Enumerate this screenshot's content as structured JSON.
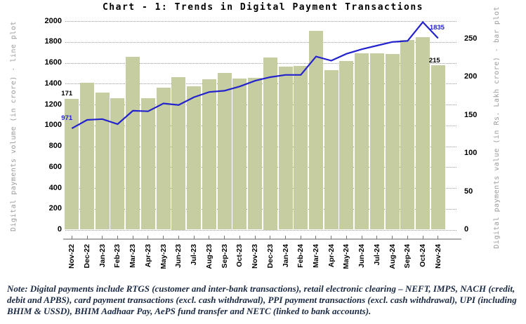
{
  "title": "Chart - 1: Trends in Digital Payment Transactions",
  "note": {
    "label": "Note",
    "text": ": Digital payments include RTGS (customer and inter-bank transactions), retail electronic clearing – NEFT, IMPS, NACH (credit, debit and APBS), card payment transactions (excl. cash withdrawal), PPI payment transactions (excl. cash withdrawal), UPI (including BHIM & USSD), BHIM Aadhaar Pay, AePS fund transfer and NETC (linked to bank accounts)."
  },
  "chart_data": {
    "type": "bar",
    "subtype": "bar+line combo",
    "categories": [
      "Nov-22",
      "Dec-22",
      "Jan-23",
      "Feb-23",
      "Mar-23",
      "Apr-23",
      "May-23",
      "Jun-23",
      "Jul-23",
      "Aug-23",
      "Sep-23",
      "Oct-23",
      "Nov-23",
      "Dec-23",
      "Jan-24",
      "Feb-24",
      "Mar-24",
      "Apr-24",
      "May-24",
      "Jun-24",
      "Jul-24",
      "Aug-24",
      "Sep-24",
      "Oct-24",
      "Nov-24"
    ],
    "series": [
      {
        "name": "Digital payments value (in Rs. Lakh crore)",
        "type": "bar",
        "axis": "right",
        "values": [
          171,
          192,
          179,
          172,
          226,
          172,
          186,
          200,
          188,
          197,
          205,
          198,
          199,
          225,
          213,
          214,
          260,
          209,
          221,
          231,
          231,
          230,
          248,
          252,
          215
        ]
      },
      {
        "name": "Digital payments volume (in crore)",
        "type": "line",
        "axis": "left",
        "values": [
          971,
          1052,
          1060,
          1012,
          1140,
          1135,
          1210,
          1195,
          1270,
          1320,
          1332,
          1373,
          1427,
          1462,
          1484,
          1484,
          1660,
          1620,
          1686,
          1730,
          1765,
          1800,
          1810,
          1990,
          1835
        ]
      }
    ],
    "left_axis": {
      "label": "Digital payments volume (in crore) - line plot",
      "min": 0,
      "max": 2000,
      "step": 200
    },
    "right_axis": {
      "label": "Digital payments value (in Rs. Lakh crore) - bar plot",
      "min": 0,
      "max": 250,
      "step": 50
    },
    "annotations": [
      {
        "text": "171",
        "series": 0,
        "index": 0,
        "color": "#000000"
      },
      {
        "text": "971",
        "series": 1,
        "index": 0,
        "color": "#2323cd"
      },
      {
        "text": "1835",
        "series": 1,
        "index": 24,
        "color": "#2323cd"
      },
      {
        "text": "215",
        "series": 0,
        "index": 24,
        "color": "#000000"
      }
    ],
    "colors": {
      "bar": "#c6cda1",
      "line": "#2323cd"
    },
    "grid": "horizontal dotted, at left-axis steps of 200",
    "legend": "none"
  }
}
